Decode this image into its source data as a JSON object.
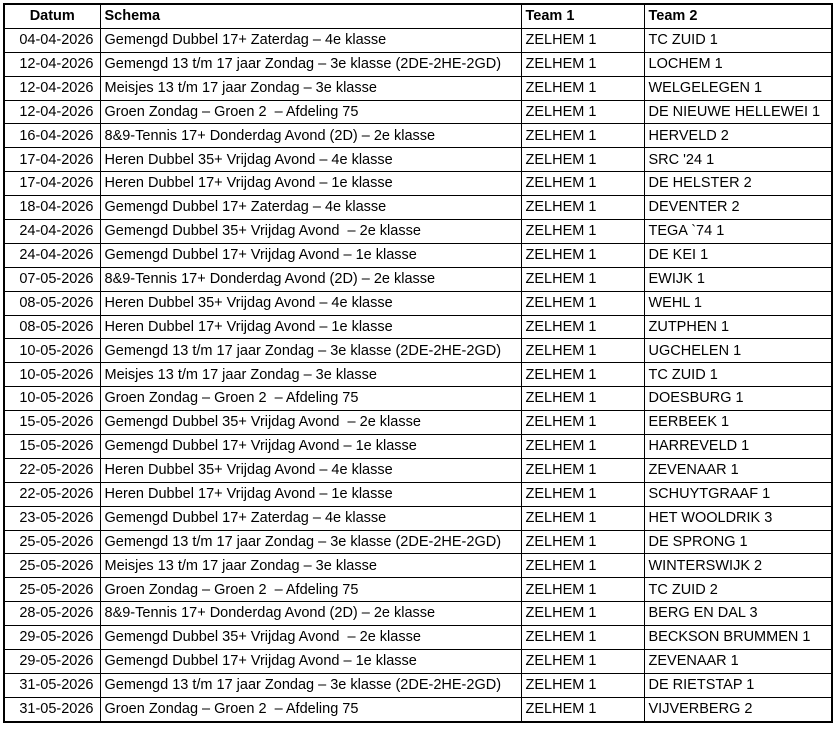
{
  "colors": {
    "border": "#000000",
    "text": "#000000",
    "background": "#ffffff"
  },
  "table": {
    "column_keys": [
      "datum",
      "schema",
      "team1",
      "team2"
    ],
    "headers": {
      "datum": "Datum",
      "schema": "Schema",
      "team1": "Team 1",
      "team2": "Team 2"
    },
    "rows": [
      {
        "datum": "04-04-2026",
        "schema": "Gemengd Dubbel 17+ Zaterdag – 4e klasse",
        "team1": "ZELHEM 1",
        "team2": "TC ZUID 1"
      },
      {
        "datum": "12-04-2026",
        "schema": "Gemengd 13 t/m 17 jaar Zondag – 3e klasse (2DE-2HE-2GD)",
        "team1": "ZELHEM 1",
        "team2": "LOCHEM 1"
      },
      {
        "datum": "12-04-2026",
        "schema": "Meisjes 13 t/m 17 jaar Zondag – 3e klasse",
        "team1": "ZELHEM 1",
        "team2": "WELGELEGEN 1"
      },
      {
        "datum": "12-04-2026",
        "schema": "Groen Zondag – Groen 2  – Afdeling 75",
        "team1": "ZELHEM 1",
        "team2": "DE NIEUWE HELLEWEI 1"
      },
      {
        "datum": "16-04-2026",
        "schema": "8&9-Tennis 17+ Donderdag Avond (2D) – 2e klasse",
        "team1": "ZELHEM 1",
        "team2": "HERVELD 2"
      },
      {
        "datum": "17-04-2026",
        "schema": "Heren Dubbel 35+ Vrijdag Avond – 4e klasse",
        "team1": "ZELHEM 1",
        "team2": "SRC '24 1"
      },
      {
        "datum": "17-04-2026",
        "schema": "Heren Dubbel 17+ Vrijdag Avond – 1e klasse",
        "team1": "ZELHEM 1",
        "team2": "DE HELSTER 2"
      },
      {
        "datum": "18-04-2026",
        "schema": "Gemengd Dubbel 17+ Zaterdag – 4e klasse",
        "team1": "ZELHEM 1",
        "team2": "DEVENTER 2"
      },
      {
        "datum": "24-04-2026",
        "schema": "Gemengd Dubbel 35+ Vrijdag Avond  – 2e klasse",
        "team1": "ZELHEM 1",
        "team2": "TEGA `74 1"
      },
      {
        "datum": "24-04-2026",
        "schema": "Gemengd Dubbel 17+ Vrijdag Avond – 1e klasse",
        "team1": "ZELHEM 1",
        "team2": "DE KEI 1"
      },
      {
        "datum": "07-05-2026",
        "schema": "8&9-Tennis 17+ Donderdag Avond (2D) – 2e klasse",
        "team1": "ZELHEM 1",
        "team2": "EWIJK 1"
      },
      {
        "datum": "08-05-2026",
        "schema": "Heren Dubbel 35+ Vrijdag Avond – 4e klasse",
        "team1": "ZELHEM 1",
        "team2": "WEHL 1"
      },
      {
        "datum": "08-05-2026",
        "schema": "Heren Dubbel 17+ Vrijdag Avond – 1e klasse",
        "team1": "ZELHEM 1",
        "team2": "ZUTPHEN 1"
      },
      {
        "datum": "10-05-2026",
        "schema": "Gemengd 13 t/m 17 jaar Zondag – 3e klasse (2DE-2HE-2GD)",
        "team1": "ZELHEM 1",
        "team2": "UGCHELEN 1"
      },
      {
        "datum": "10-05-2026",
        "schema": "Meisjes 13 t/m 17 jaar Zondag – 3e klasse",
        "team1": "ZELHEM 1",
        "team2": "TC ZUID 1"
      },
      {
        "datum": "10-05-2026",
        "schema": "Groen Zondag – Groen 2  – Afdeling 75",
        "team1": "ZELHEM 1",
        "team2": "DOESBURG 1"
      },
      {
        "datum": "15-05-2026",
        "schema": "Gemengd Dubbel 35+ Vrijdag Avond  – 2e klasse",
        "team1": "ZELHEM 1",
        "team2": "EERBEEK 1"
      },
      {
        "datum": "15-05-2026",
        "schema": "Gemengd Dubbel 17+ Vrijdag Avond – 1e klasse",
        "team1": "ZELHEM 1",
        "team2": "HARREVELD 1"
      },
      {
        "datum": "22-05-2026",
        "schema": "Heren Dubbel 35+ Vrijdag Avond – 4e klasse",
        "team1": "ZELHEM 1",
        "team2": "ZEVENAAR 1"
      },
      {
        "datum": "22-05-2026",
        "schema": "Heren Dubbel 17+ Vrijdag Avond – 1e klasse",
        "team1": "ZELHEM 1",
        "team2": "SCHUYTGRAAF 1"
      },
      {
        "datum": "23-05-2026",
        "schema": "Gemengd Dubbel 17+ Zaterdag – 4e klasse",
        "team1": "ZELHEM 1",
        "team2": "HET WOOLDRIK 3"
      },
      {
        "datum": "25-05-2026",
        "schema": "Gemengd 13 t/m 17 jaar Zondag – 3e klasse (2DE-2HE-2GD)",
        "team1": "ZELHEM 1",
        "team2": "DE SPRONG 1"
      },
      {
        "datum": "25-05-2026",
        "schema": "Meisjes 13 t/m 17 jaar Zondag – 3e klasse",
        "team1": "ZELHEM 1",
        "team2": "WINTERSWIJK 2"
      },
      {
        "datum": "25-05-2026",
        "schema": "Groen Zondag – Groen 2  – Afdeling 75",
        "team1": "ZELHEM 1",
        "team2": "TC ZUID 2"
      },
      {
        "datum": "28-05-2026",
        "schema": "8&9-Tennis 17+ Donderdag Avond (2D) – 2e klasse",
        "team1": "ZELHEM 1",
        "team2": "BERG EN DAL 3"
      },
      {
        "datum": "29-05-2026",
        "schema": "Gemengd Dubbel 35+ Vrijdag Avond  – 2e klasse",
        "team1": "ZELHEM 1",
        "team2": "BECKSON BRUMMEN 1"
      },
      {
        "datum": "29-05-2026",
        "schema": "Gemengd Dubbel 17+ Vrijdag Avond – 1e klasse",
        "team1": "ZELHEM 1",
        "team2": "ZEVENAAR 1"
      },
      {
        "datum": "31-05-2026",
        "schema": "Gemengd 13 t/m 17 jaar Zondag – 3e klasse (2DE-2HE-2GD)",
        "team1": "ZELHEM 1",
        "team2": "DE RIETSTAP 1"
      },
      {
        "datum": "31-05-2026",
        "schema": "Groen Zondag – Groen 2  – Afdeling 75",
        "team1": "ZELHEM 1",
        "team2": "VIJVERBERG 2"
      }
    ]
  }
}
